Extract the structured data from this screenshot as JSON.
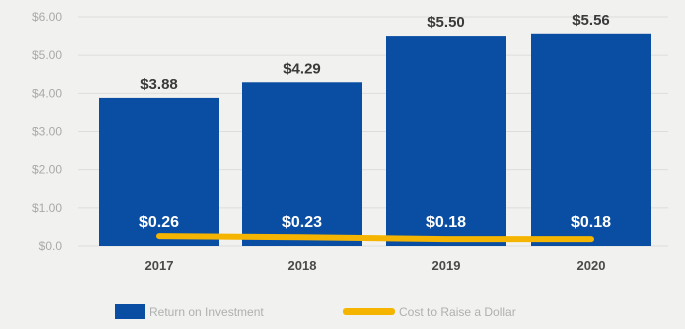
{
  "chart_data": {
    "type": "bar",
    "categories": [
      "2017",
      "2018",
      "2019",
      "2020"
    ],
    "series": [
      {
        "name": "Return on Investment",
        "type": "bar",
        "values": [
          3.88,
          4.29,
          5.5,
          5.56
        ],
        "labels": [
          "$3.88",
          "$4.29",
          "$5.50",
          "$5.56"
        ],
        "color": "#0a4ea3"
      },
      {
        "name": "Cost to Raise a Dollar",
        "type": "line",
        "values": [
          0.26,
          0.23,
          0.18,
          0.18
        ],
        "labels": [
          "$0.26",
          "$0.23",
          "$0.18",
          "$0.18"
        ],
        "color": "#f5b400"
      }
    ],
    "yticks": [
      "$6.00",
      "$5.00",
      "$4.00",
      "$3.00",
      "$2.00",
      "$1.00",
      "$0.0"
    ],
    "ylim": [
      0,
      6
    ],
    "grid": true,
    "legend_position": "bottom",
    "title": "",
    "xlabel": "",
    "ylabel": ""
  }
}
